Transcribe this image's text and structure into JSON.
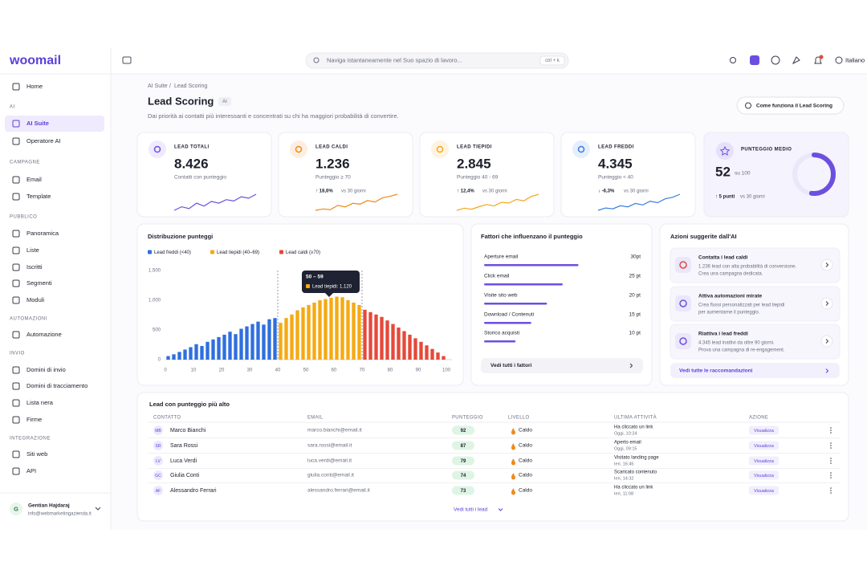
{
  "sidebar": {
    "logo": "woomail",
    "home": "Home",
    "sections": [
      {
        "title": "AI",
        "items": [
          {
            "label": "AI Suite",
            "active": true
          },
          {
            "label": "Operatore AI"
          }
        ]
      },
      {
        "title": "CAMPAGNE",
        "items": [
          {
            "label": "Email"
          },
          {
            "label": "Template"
          }
        ]
      },
      {
        "title": "PUBBLICO",
        "items": [
          {
            "label": "Panoramica"
          },
          {
            "label": "Liste"
          },
          {
            "label": "Iscritti"
          },
          {
            "label": "Segmenti"
          },
          {
            "label": "Moduli"
          }
        ]
      },
      {
        "title": "AUTOMAZIONI",
        "items": [
          {
            "label": "Automazione"
          }
        ]
      },
      {
        "title": "INVIO",
        "items": [
          {
            "label": "Domini di invio"
          },
          {
            "label": "Domini di tracciamento"
          },
          {
            "label": "Lista nera"
          },
          {
            "label": "Firme"
          }
        ]
      },
      {
        "title": "INTEGRAZIONE",
        "items": [
          {
            "label": "Siti web"
          },
          {
            "label": "API"
          }
        ]
      }
    ],
    "user": {
      "initial": "G",
      "name": "Gentian Hajdaraj",
      "email": "info@webmarketingazienda.it"
    }
  },
  "topbar": {
    "search": "Naviga istantaneamente nel Suo spazio di lavoro...",
    "shortcut": "ctrl + k",
    "language": "Italiano"
  },
  "header": {
    "breadcrumb": [
      "AI Suite",
      "Lead Scoring"
    ],
    "separator": "/",
    "title": "Lead Scoring",
    "badge": "AI",
    "subtitle": "Dai priorità ai contatti più interessanti e concentrati su chi ha maggiori probabilità di convertire.",
    "help_button": "Come funziona il Lead Scoring"
  },
  "kpis": [
    {
      "label": "LEAD TOTALI",
      "value": "8.426",
      "sub": "Contatti con punteggio",
      "color": "#6d4fe0",
      "icon_bg": "#efeafd",
      "sparkline": [
        3,
        4,
        3.5,
        5,
        4.2,
        5.5,
        5,
        6,
        5.6,
        6.8,
        6.4,
        7.5
      ]
    },
    {
      "label": "LEAD CALDI",
      "value": "1.236",
      "sub": "Punteggio ≥ 70",
      "change": "↑ 18,6%",
      "change_color": "#1f9d55",
      "period": "vs 30 giorni",
      "color": "#f08a1c",
      "icon_bg": "#fdeee2",
      "sparkline": [
        2,
        2.4,
        2.2,
        3.4,
        3,
        4,
        3.8,
        4.8,
        4.4,
        5.6,
        6,
        6.6
      ]
    },
    {
      "label": "LEAD TIEPIDI",
      "value": "2.845",
      "sub": "Punteggio 40 - 69",
      "change": "↑ 12,4%",
      "change_color": "#1f9d55",
      "period": "vs 30 giorni",
      "color": "#f5a623",
      "icon_bg": "#fdf3df",
      "sparkline": [
        2,
        2.6,
        2.3,
        3,
        3.6,
        3.2,
        4.2,
        4,
        5,
        4.6,
        5.8,
        6.4
      ]
    },
    {
      "label": "LEAD FREDDI",
      "value": "4.345",
      "sub": "Punteggio < 40",
      "change": "↓ -6,3%",
      "change_color": "#e0413a",
      "period": "vs 30 giorni",
      "color": "#3b7be0",
      "icon_bg": "#e5eefc",
      "sparkline": [
        2,
        2.6,
        2.4,
        3.2,
        2.9,
        3.8,
        3.4,
        4.4,
        4,
        5,
        5.4,
        6.2
      ]
    }
  ],
  "score_card": {
    "label": "PUNTEGGIO MEDIO",
    "value": 52,
    "unit": "su 100",
    "change": "↑ 5 punti",
    "period": "vs 30 giorni",
    "range": [
      0,
      100
    ],
    "color": "#6d4fe0"
  },
  "chart_data": {
    "type": "histogram",
    "title": "Distribuzione punteggi",
    "groups": [
      {
        "name": "Lead freddi (<40)",
        "color": "#2f6fde",
        "from": 0,
        "to": 40
      },
      {
        "name": "Lead tiepidi (40–69)",
        "color": "#f5a912",
        "from": 40,
        "to": 70
      },
      {
        "name": "Lead caldi (≥70)",
        "color": "#e5493a",
        "from": 70,
        "to": 100
      }
    ],
    "bins": [
      0,
      2,
      4,
      6,
      8,
      10,
      12,
      14,
      16,
      18,
      20,
      22,
      24,
      26,
      28,
      30,
      32,
      34,
      36,
      38,
      40,
      42,
      44,
      46,
      48,
      50,
      52,
      54,
      56,
      58,
      60,
      62,
      64,
      66,
      68,
      70,
      72,
      74,
      76,
      78,
      80,
      82,
      84,
      86,
      88,
      90,
      92,
      94,
      96,
      98,
      100
    ],
    "counts": [
      60,
      90,
      130,
      170,
      210,
      260,
      230,
      300,
      340,
      380,
      420,
      470,
      430,
      520,
      560,
      600,
      640,
      590,
      680,
      700,
      620,
      700,
      760,
      830,
      880,
      920,
      960,
      1000,
      1020,
      1040,
      1060,
      1050,
      1000,
      960,
      920,
      840,
      800,
      760,
      720,
      660,
      600,
      540,
      480,
      420,
      360,
      300,
      240,
      180,
      120,
      60
    ],
    "xlim": [
      0,
      102
    ],
    "xticks": [
      0,
      10,
      20,
      30,
      40,
      50,
      60,
      70,
      80,
      90,
      100
    ],
    "ylim": [
      0,
      1500
    ],
    "yticks": [
      0,
      500,
      {
        "value": 1000,
        "label": "1.000"
      },
      {
        "value": 1500,
        "label": "1.500"
      }
    ],
    "grid": false,
    "tooltip": {
      "title": "50 – 59",
      "text": "Lead tiepidi: 1.120"
    }
  },
  "factors": {
    "title": "Fattori che influenzano il punteggio",
    "categories": [
      "Aperture email",
      "Click email",
      "Visite sito web",
      "Download / Contenuti",
      "Storico acquisti"
    ],
    "values": [
      30,
      25,
      20,
      15,
      10
    ],
    "value_labels": [
      "30pt",
      "25 pt",
      "20 pt",
      "15 pt",
      "10 pt"
    ],
    "xlim": [
      0,
      50
    ],
    "color": "#6d4fe0",
    "button": "Vedi tutti i fattori"
  },
  "actions": {
    "title": "Azioni suggerite dall'AI",
    "items": [
      {
        "title": "Contatta i lead caldi",
        "lines": [
          "1.236 lead con alta probabilità di conversione.",
          "Crea una campagna dedicata."
        ],
        "color": "#e5493a"
      },
      {
        "title": "Attiva automazioni mirate",
        "lines": [
          "Crea flussi personalizzati per lead tiepidi",
          "per aumentarne il punteggio."
        ],
        "color": "#6d4fe0"
      },
      {
        "title": "Riattiva i lead freddi",
        "lines": [
          "4.345 lead inattivi da oltre 90 giorni.",
          "Prova una campagna di re-engagement."
        ],
        "color": "#6d4fe0"
      }
    ],
    "link": "Vedi tutte le raccomandazioni"
  },
  "table": {
    "title": "Lead con punteggio più alto",
    "columns": [
      "CONTATTO",
      "EMAIL",
      "PUNTEGGIO",
      "LIVELLO",
      "ULTIMA ATTIVITÀ",
      "AZIONE"
    ],
    "rows": [
      [
        "MB",
        "Marco Bianchi",
        "marco.bianchi@email.it",
        92,
        "Caldo",
        "Ha cliccato un link",
        "Oggi, 10:24",
        "Visualizza"
      ],
      [
        "SR",
        "Sara Rossi",
        "sara.rossi@email.it",
        87,
        "Caldo",
        "Aperto email",
        "Oggi, 09:15",
        "Visualizza"
      ],
      [
        "LV",
        "Luca Verdi",
        "luca.verdi@email.it",
        79,
        "Caldo",
        "Visitato landing page",
        "Ieri, 16:45",
        "Visualizza"
      ],
      [
        "GC",
        "Giulia Conti",
        "giulia.conti@email.it",
        74,
        "Caldo",
        "Scaricato contenuto",
        "Ieri, 14:32",
        "Visualizza"
      ],
      [
        "AF",
        "Alessandro Ferrari",
        "alessandro.ferrari@email.it",
        73,
        "Caldo",
        "Ha cliccato un link",
        "Ieri, 11:08",
        "Visualizza"
      ]
    ],
    "footer": "Vedi tutti i lead"
  }
}
